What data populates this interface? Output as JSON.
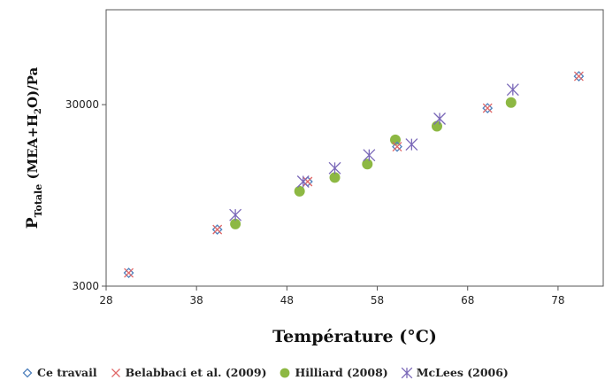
{
  "chart_data": {
    "type": "scatter",
    "title": "",
    "xlabel": "Température (°C)",
    "ylabel": {
      "main": "P",
      "sub": "Totale",
      "rest_a": " (MEA+H",
      "sub2": "2",
      "rest_b": "O)/Pa"
    },
    "x_axis": {
      "min": 28,
      "max": 83,
      "ticks": [
        28,
        38,
        48,
        58,
        68,
        78
      ]
    },
    "y_axis": {
      "scale": "log",
      "min": 3000,
      "max": 100000,
      "tick_labels": [
        "3000",
        "30000"
      ]
    },
    "grid": false,
    "legend_position": "bottom",
    "series": [
      {
        "name": "Ce travail",
        "marker": "diamond-open",
        "color": "#4f81bd",
        "points": [
          [
            30.5,
            3550
          ],
          [
            40.3,
            6150
          ],
          [
            50.3,
            11300
          ],
          [
            60.2,
            17600
          ],
          [
            70.2,
            28700
          ],
          [
            80.3,
            43000
          ]
        ]
      },
      {
        "name": "Belabbaci et al. (2009)",
        "marker": "x",
        "color": "#e06666",
        "points": [
          [
            30.5,
            3550
          ],
          [
            40.3,
            6150
          ],
          [
            50.3,
            11300
          ],
          [
            60.2,
            17600
          ],
          [
            70.2,
            28700
          ],
          [
            80.3,
            43000
          ]
        ]
      },
      {
        "name": "Hilliard (2008)",
        "marker": "circle-filled",
        "color": "#8db843",
        "points": [
          [
            42.3,
            6600
          ],
          [
            49.4,
            10000
          ],
          [
            53.3,
            11900
          ],
          [
            56.9,
            14100
          ],
          [
            60.0,
            19200
          ],
          [
            64.6,
            22800
          ],
          [
            72.8,
            30800
          ]
        ]
      },
      {
        "name": "McLees (2006)",
        "marker": "asterisk",
        "color": "#7a68b8",
        "points": [
          [
            42.3,
            7400
          ],
          [
            49.8,
            11300
          ],
          [
            53.3,
            13400
          ],
          [
            57.1,
            15800
          ],
          [
            61.8,
            18100
          ],
          [
            64.9,
            25100
          ],
          [
            73.0,
            36300
          ]
        ]
      }
    ]
  }
}
